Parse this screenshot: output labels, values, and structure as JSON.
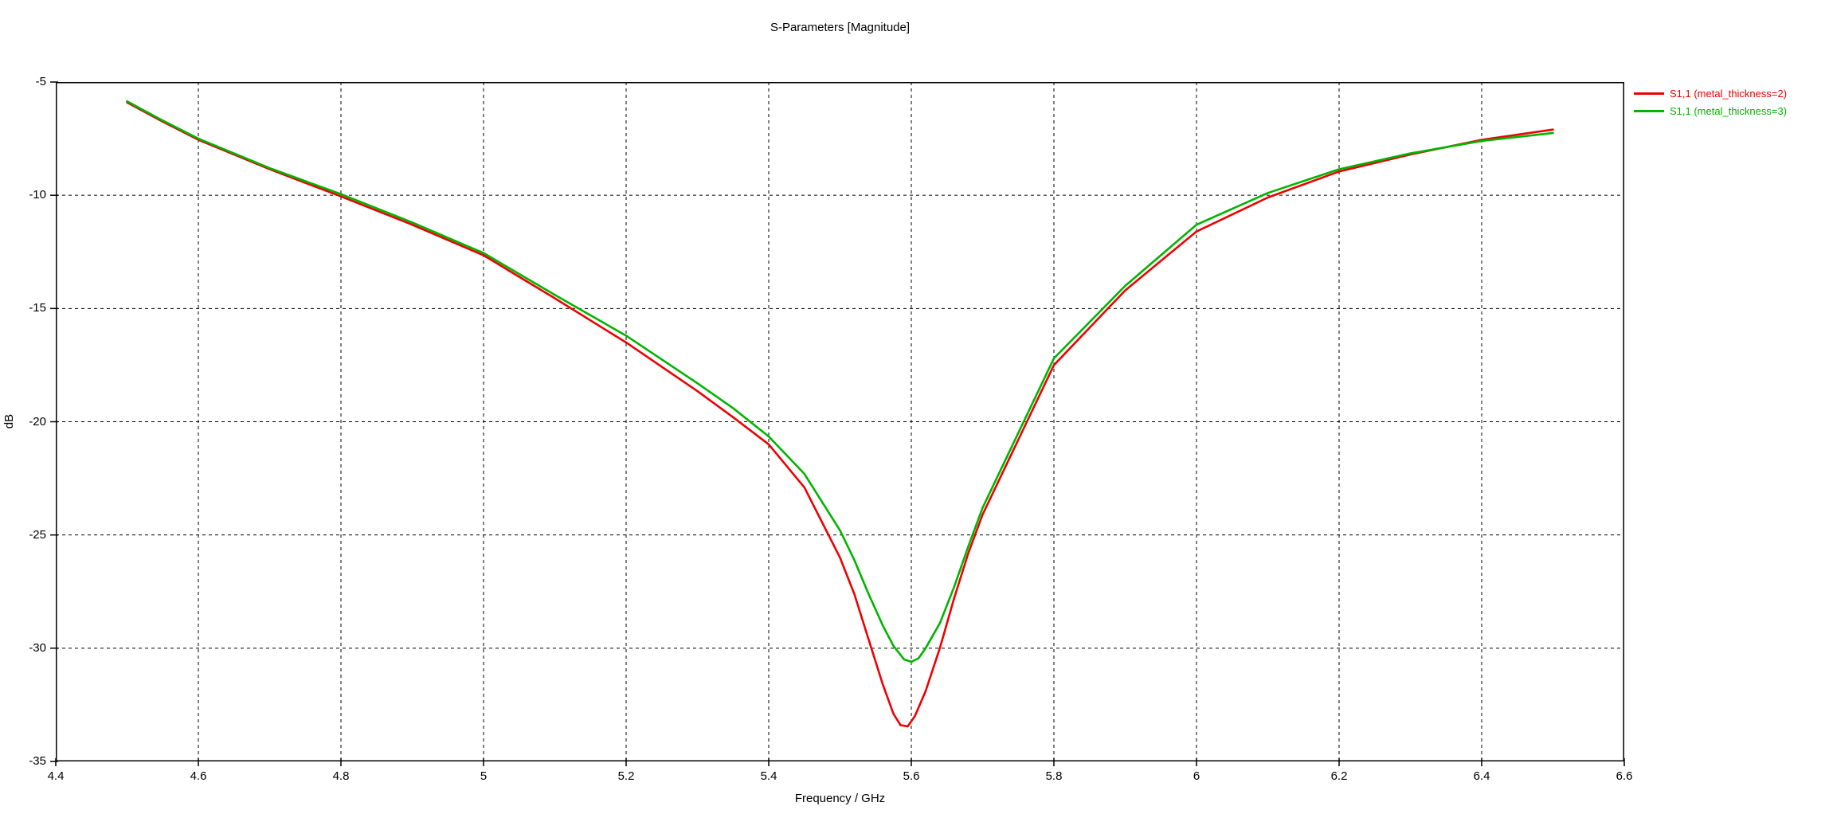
{
  "title": "S-Parameters [Magnitude]",
  "colors": {
    "background": "#ffffff",
    "axis": "#000000",
    "grid": "#000000",
    "series_red": "#ee0000",
    "series_green": "#00b400"
  },
  "legend": [
    {
      "label": "S1,1 (metal_thickness=2)",
      "color": "#ee0000"
    },
    {
      "label": "S1,1 (metal_thickness=3)",
      "color": "#00b400"
    }
  ],
  "chart_data": {
    "type": "line",
    "title": "S-Parameters [Magnitude]",
    "xlabel": "Frequency / GHz",
    "ylabel": "dB",
    "xlim": [
      4.4,
      6.6
    ],
    "ylim": [
      -35,
      -5
    ],
    "xticks": [
      {
        "value": 4.4,
        "label": "4.4"
      },
      {
        "value": 4.6,
        "label": "4.6"
      },
      {
        "value": 4.8,
        "label": "4.8"
      },
      {
        "value": 5.0,
        "label": "5"
      },
      {
        "value": 5.2,
        "label": "5.2"
      },
      {
        "value": 5.4,
        "label": "5.4"
      },
      {
        "value": 5.6,
        "label": "5.6"
      },
      {
        "value": 5.8,
        "label": "5.8"
      },
      {
        "value": 6.0,
        "label": "6"
      },
      {
        "value": 6.2,
        "label": "6.2"
      },
      {
        "value": 6.4,
        "label": "6.4"
      },
      {
        "value": 6.6,
        "label": "6.6"
      }
    ],
    "yticks": [
      {
        "value": -5,
        "label": "-5"
      },
      {
        "value": -10,
        "label": "-10"
      },
      {
        "value": -15,
        "label": "-15"
      },
      {
        "value": -20,
        "label": "-20"
      },
      {
        "value": -25,
        "label": "-25"
      },
      {
        "value": -30,
        "label": "-30"
      },
      {
        "value": -35,
        "label": "-35"
      }
    ],
    "grid": "dashed",
    "legend_position": "top-right-outside",
    "series": [
      {
        "name": "S1,1 (metal_thickness=2)",
        "color": "#ee0000",
        "points": [
          [
            4.5,
            -5.9
          ],
          [
            4.55,
            -6.75
          ],
          [
            4.6,
            -7.55
          ],
          [
            4.7,
            -8.85
          ],
          [
            4.8,
            -10.05
          ],
          [
            4.9,
            -11.3
          ],
          [
            5.0,
            -12.65
          ],
          [
            5.1,
            -14.55
          ],
          [
            5.2,
            -16.5
          ],
          [
            5.3,
            -18.65
          ],
          [
            5.35,
            -19.8
          ],
          [
            5.4,
            -21.0
          ],
          [
            5.45,
            -22.9
          ],
          [
            5.5,
            -26.0
          ],
          [
            5.52,
            -27.6
          ],
          [
            5.54,
            -29.6
          ],
          [
            5.56,
            -31.6
          ],
          [
            5.575,
            -32.9
          ],
          [
            5.585,
            -33.4
          ],
          [
            5.595,
            -33.45
          ],
          [
            5.605,
            -33.0
          ],
          [
            5.62,
            -31.9
          ],
          [
            5.64,
            -30.0
          ],
          [
            5.66,
            -27.8
          ],
          [
            5.68,
            -25.8
          ],
          [
            5.7,
            -24.1
          ],
          [
            5.75,
            -20.8
          ],
          [
            5.8,
            -17.5
          ],
          [
            5.9,
            -14.2
          ],
          [
            6.0,
            -11.6
          ],
          [
            6.1,
            -10.1
          ],
          [
            6.2,
            -8.95
          ],
          [
            6.3,
            -8.2
          ],
          [
            6.4,
            -7.55
          ],
          [
            6.5,
            -7.1
          ]
        ],
        "minimum": {
          "x": 5.59,
          "y": -33.45
        }
      },
      {
        "name": "S1,1 (metal_thickness=3)",
        "color": "#00b400",
        "points": [
          [
            4.5,
            -5.85
          ],
          [
            4.55,
            -6.7
          ],
          [
            4.6,
            -7.5
          ],
          [
            4.7,
            -8.8
          ],
          [
            4.8,
            -9.95
          ],
          [
            4.9,
            -11.2
          ],
          [
            5.0,
            -12.55
          ],
          [
            5.1,
            -14.4
          ],
          [
            5.2,
            -16.2
          ],
          [
            5.3,
            -18.3
          ],
          [
            5.35,
            -19.4
          ],
          [
            5.4,
            -20.65
          ],
          [
            5.45,
            -22.3
          ],
          [
            5.5,
            -24.8
          ],
          [
            5.52,
            -26.1
          ],
          [
            5.54,
            -27.6
          ],
          [
            5.56,
            -29.0
          ],
          [
            5.575,
            -29.9
          ],
          [
            5.59,
            -30.5
          ],
          [
            5.6,
            -30.6
          ],
          [
            5.61,
            -30.45
          ],
          [
            5.62,
            -30.0
          ],
          [
            5.64,
            -28.9
          ],
          [
            5.66,
            -27.3
          ],
          [
            5.68,
            -25.5
          ],
          [
            5.7,
            -23.8
          ],
          [
            5.75,
            -20.5
          ],
          [
            5.8,
            -17.2
          ],
          [
            5.9,
            -14.0
          ],
          [
            6.0,
            -11.3
          ],
          [
            6.1,
            -9.9
          ],
          [
            6.2,
            -8.85
          ],
          [
            6.3,
            -8.15
          ],
          [
            6.4,
            -7.6
          ],
          [
            6.5,
            -7.25
          ]
        ],
        "minimum": {
          "x": 5.6,
          "y": -30.6
        }
      }
    ]
  }
}
